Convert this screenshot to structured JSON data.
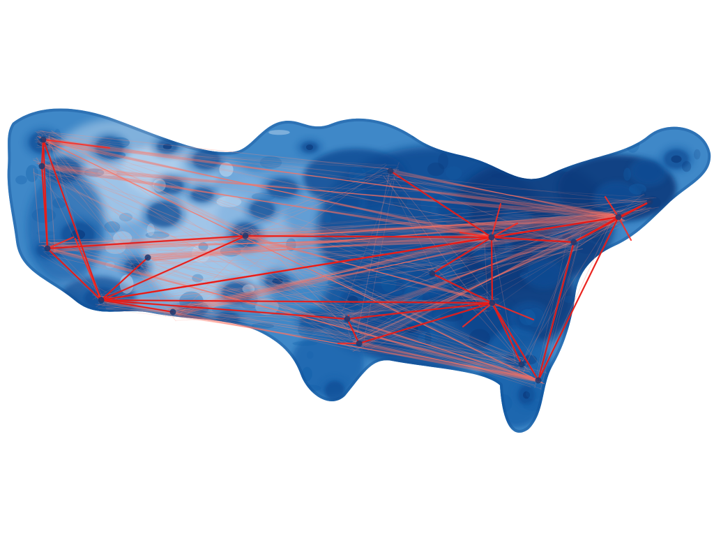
{
  "map": {
    "visual_kind": "density-and-network",
    "density_colors": {
      "level_1": "#e9f3fd",
      "level_2": "#cfe3f8",
      "level_3": "#a9cdf0",
      "level_4": "#7aaedf",
      "level_5": "#3f88c8",
      "level_6": "#125fa9",
      "level_7": "#0b4a92",
      "level_8": "#0b3a7d",
      "highlight_cool": "#dbeaf8"
    },
    "edge_colors": {
      "faint": "#ff8b7b",
      "mid": "#ff5a4a",
      "strong": "#ff2a1f",
      "dark": "#d91414"
    }
  }
}
